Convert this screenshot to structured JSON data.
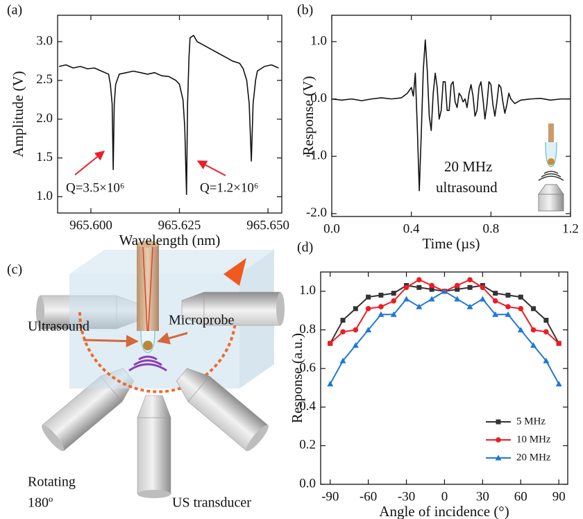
{
  "chart_data": [
    {
      "type": "line",
      "panel": "(a)",
      "xlabel": "Wavelength (nm)",
      "ylabel": "Amplitude (V)",
      "color": "#111111",
      "x": [
        965.591,
        965.593,
        965.595,
        965.597,
        965.599,
        965.601,
        965.603,
        965.605,
        965.6055,
        965.606,
        965.6063,
        965.6066,
        965.607,
        965.608,
        965.61,
        965.612,
        965.614,
        965.616,
        965.618,
        965.62,
        965.622,
        965.624,
        965.625,
        965.626,
        965.6265,
        965.627,
        965.6273,
        965.6277,
        965.628,
        965.629,
        965.63,
        965.632,
        965.634,
        965.636,
        965.638,
        965.64,
        965.642,
        965.643,
        965.644,
        965.6447,
        965.6453,
        965.6458,
        965.6465,
        965.647,
        965.649,
        965.651,
        965.653
      ],
      "values": [
        2.68,
        2.7,
        2.66,
        2.68,
        2.65,
        2.66,
        2.62,
        2.58,
        2.45,
        2.2,
        1.35,
        2.2,
        2.45,
        2.58,
        2.6,
        2.62,
        2.6,
        2.58,
        2.6,
        2.56,
        2.55,
        2.5,
        2.45,
        2.25,
        1.9,
        1.03,
        2.2,
        2.8,
        3.05,
        3.08,
        3.0,
        2.95,
        2.9,
        2.85,
        2.8,
        2.75,
        2.72,
        2.65,
        2.5,
        2.2,
        1.46,
        2.2,
        2.5,
        2.62,
        2.68,
        2.7,
        2.66
      ],
      "xlim": [
        965.5906,
        965.6539
      ],
      "ylim": [
        0.79,
        3.34
      ],
      "xticks": [
        {
          "value": 965.6,
          "label": "965.600"
        },
        965.625,
        {
          "value": 965.65,
          "label": "965.650"
        }
      ],
      "yticks": [
        {
          "value": 1,
          "label": "1.0"
        },
        1.5,
        {
          "value": 2,
          "label": "2.0"
        },
        2.5,
        {
          "value": 3,
          "label": "3.0"
        }
      ],
      "annotations": [
        "Q=3.5×10⁶",
        "Q=1.2×10⁶"
      ]
    },
    {
      "type": "line",
      "panel": "(b)",
      "xlabel": "Time (µs)",
      "ylabel": "Response (V)",
      "color": "#111111",
      "x": [
        0,
        0.05,
        0.1,
        0.15,
        0.2,
        0.25,
        0.3,
        0.35,
        0.38,
        0.4,
        0.41,
        0.42,
        0.43,
        0.44,
        0.45,
        0.46,
        0.47,
        0.48,
        0.49,
        0.5,
        0.51,
        0.52,
        0.53,
        0.54,
        0.55,
        0.56,
        0.57,
        0.58,
        0.59,
        0.6,
        0.61,
        0.62,
        0.63,
        0.64,
        0.65,
        0.66,
        0.67,
        0.68,
        0.69,
        0.7,
        0.71,
        0.72,
        0.73,
        0.74,
        0.75,
        0.76,
        0.77,
        0.78,
        0.79,
        0.8,
        0.81,
        0.82,
        0.83,
        0.84,
        0.85,
        0.86,
        0.87,
        0.88,
        0.89,
        0.9,
        0.92,
        0.95,
        1.0,
        1.05,
        1.1,
        1.15,
        1.2
      ],
      "values": [
        0,
        -0.02,
        0,
        -0.03,
        0,
        0.02,
        0,
        0.02,
        0.1,
        0.2,
        0.05,
        0.45,
        -0.5,
        -1.6,
        -0.6,
        0.5,
        1.03,
        0.5,
        -0.3,
        -0.55,
        0.1,
        0.45,
        0.2,
        -0.35,
        -0.2,
        0.3,
        0.3,
        -0.2,
        -0.2,
        0.25,
        0.3,
        -0.05,
        -0.15,
        0.1,
        0.05,
        -0.05,
        0,
        -0.15,
        0.1,
        0.25,
        0.05,
        -0.3,
        -0.2,
        0.2,
        0.3,
        0,
        -0.35,
        -0.1,
        0.3,
        0.25,
        -0.1,
        -0.3,
        -0.05,
        0.25,
        0.2,
        -0.05,
        -0.25,
        -0.1,
        0.1,
        0,
        -0.08,
        -0.02,
        0,
        0.01,
        -0.02,
        0,
        0
      ],
      "xlim": [
        0,
        1.2
      ],
      "ylim": [
        -2.05,
        1.46
      ],
      "xticks": [
        {
          "value": 0,
          "label": "0.0"
        },
        0.4,
        0.8,
        1.2
      ],
      "yticks": [
        {
          "value": -2,
          "label": "-2.0"
        },
        {
          "value": -1,
          "label": "-1.0"
        },
        {
          "value": 0,
          "label": "0.0"
        },
        {
          "value": 1,
          "label": "1.0"
        }
      ],
      "annotations": [
        "20 MHz",
        "ultrasound"
      ]
    },
    {
      "type": "line",
      "panel": "(d)",
      "xlabel": "Angle of incidence (°)",
      "ylabel": "Response (a.u.)",
      "legend": "lower right",
      "x": [
        -90,
        -80,
        -70,
        -60,
        -50,
        -40,
        -30,
        -20,
        -10,
        0,
        10,
        20,
        30,
        40,
        50,
        60,
        70,
        80,
        90
      ],
      "series": [
        {
          "name": "5 MHz",
          "color": "#333333",
          "marker": "square",
          "values": [
            0.73,
            0.85,
            0.91,
            0.97,
            0.98,
            0.99,
            1.03,
            1.02,
            1.01,
            1.0,
            1.01,
            1.02,
            1.03,
            0.99,
            0.98,
            0.97,
            0.91,
            0.85,
            0.73
          ]
        },
        {
          "name": "10 MHz",
          "color": "#ee1c24",
          "marker": "circle",
          "values": [
            0.73,
            0.79,
            0.8,
            0.91,
            0.92,
            0.95,
            1.02,
            1.06,
            1.03,
            1.0,
            1.03,
            1.06,
            1.02,
            0.95,
            0.92,
            0.91,
            0.8,
            0.79,
            0.73
          ]
        },
        {
          "name": "20 MHz",
          "color": "#1f78d8",
          "marker": "triangle",
          "values": [
            0.52,
            0.64,
            0.72,
            0.8,
            0.88,
            0.88,
            0.96,
            0.92,
            0.96,
            1.0,
            0.96,
            0.92,
            0.96,
            0.88,
            0.88,
            0.8,
            0.72,
            0.64,
            0.52
          ]
        }
      ],
      "xlim": [
        -97.5,
        97
      ],
      "ylim": [
        0,
        1.1
      ],
      "xticks": [
        -90,
        -60,
        -30,
        0,
        30,
        60,
        90
      ],
      "yticks": [
        {
          "value": 0,
          "label": "0.0"
        },
        0.2,
        0.4,
        0.6,
        0.8,
        {
          "value": 1,
          "label": "1.0"
        }
      ]
    }
  ],
  "diagram": {
    "panel": "(c)",
    "labels": [
      "Ultrasound",
      "Microprobe",
      "Rotating",
      "180º",
      "US transducer"
    ]
  }
}
